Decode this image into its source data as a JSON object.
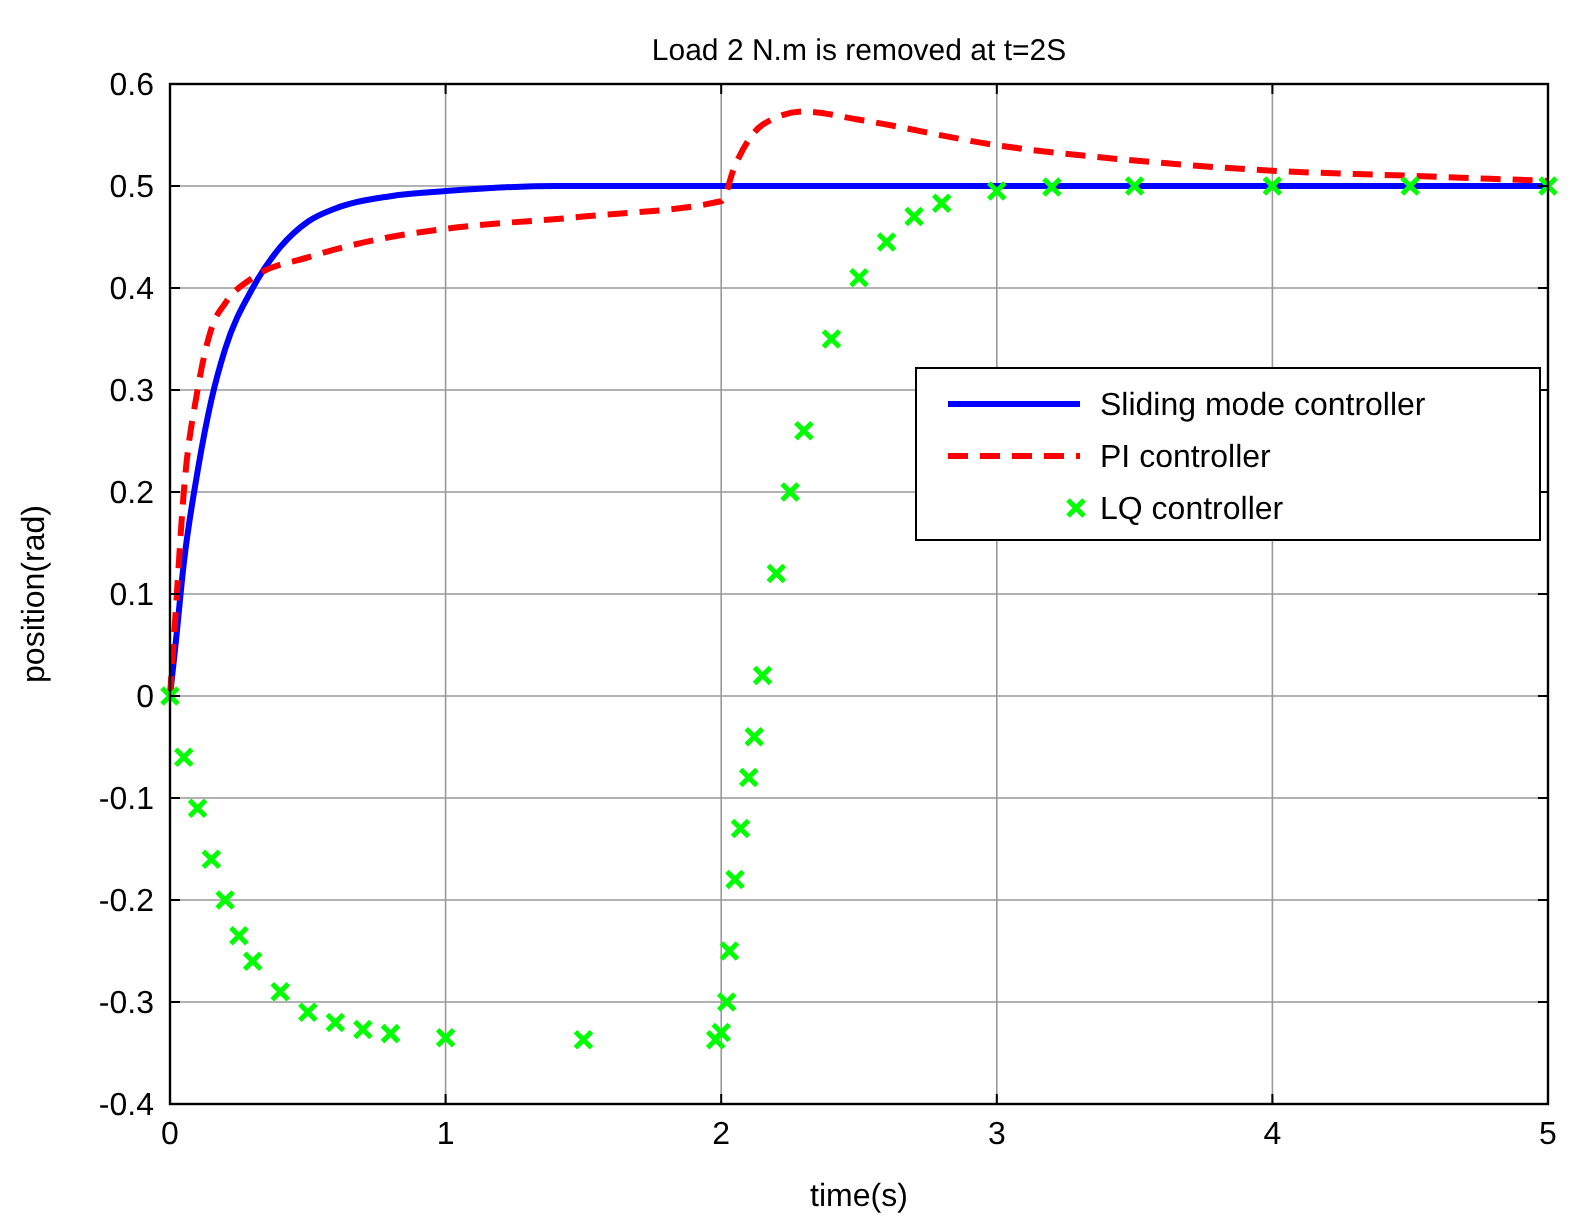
{
  "chart_data": {
    "type": "line",
    "title": "Load 2 N.m is removed at t=2S",
    "xlabel": "time(s)",
    "ylabel": "position(rad)",
    "xlim": [
      0,
      5
    ],
    "xticks": [
      0,
      1,
      2,
      3,
      4,
      5
    ],
    "ylim": [
      -0.4,
      0.6
    ],
    "yticks": [
      -0.4,
      -0.3,
      -0.2,
      -0.1,
      0,
      0.1,
      0.2,
      0.3,
      0.4,
      0.5,
      0.6
    ],
    "grid": true,
    "legend": "right",
    "series": [
      {
        "name": "Sliding mode controller",
        "color": "#0000ff",
        "line_style": "solid",
        "marker": "none",
        "x": [
          0,
          0.02,
          0.05,
          0.1,
          0.15,
          0.2,
          0.3,
          0.4,
          0.5,
          0.6,
          0.8,
          1.0,
          1.4,
          5
        ],
        "values": [
          0,
          0.05,
          0.13,
          0.22,
          0.29,
          0.34,
          0.4,
          0.44,
          0.465,
          0.478,
          0.49,
          0.495,
          0.5,
          0.5
        ]
      },
      {
        "name": "PI controller",
        "color": "#ff0000",
        "line_style": "dashed",
        "marker": "none",
        "x": [
          0,
          0.02,
          0.05,
          0.1,
          0.15,
          0.2,
          0.3,
          0.5,
          0.8,
          1.0,
          1.5,
          2.0,
          2.05,
          2.15,
          2.3,
          2.5,
          3.0,
          3.5,
          4.0,
          4.5,
          5
        ],
        "values": [
          0,
          0.08,
          0.2,
          0.3,
          0.36,
          0.385,
          0.41,
          0.43,
          0.45,
          0.458,
          0.47,
          0.485,
          0.52,
          0.56,
          0.573,
          0.565,
          0.54,
          0.525,
          0.515,
          0.51,
          0.505
        ]
      },
      {
        "name": "LQ controller",
        "type": "scatter",
        "color": "#00ff00",
        "marker": "cross",
        "x": [
          0,
          0.05,
          0.1,
          0.15,
          0.2,
          0.25,
          0.3,
          0.4,
          0.5,
          0.6,
          0.7,
          0.8,
          1.0,
          1.5,
          1.98,
          2.0,
          2.02,
          2.03,
          2.05,
          2.07,
          2.1,
          2.12,
          2.15,
          2.2,
          2.25,
          2.3,
          2.4,
          2.5,
          2.6,
          2.7,
          2.8,
          3.0,
          3.2,
          3.5,
          4.0,
          4.5,
          5
        ],
        "values": [
          0,
          -0.06,
          -0.11,
          -0.16,
          -0.2,
          -0.235,
          -0.26,
          -0.29,
          -0.31,
          -0.32,
          -0.327,
          -0.331,
          -0.335,
          -0.337,
          -0.337,
          -0.33,
          -0.3,
          -0.25,
          -0.18,
          -0.13,
          -0.08,
          -0.04,
          0.02,
          0.12,
          0.2,
          0.26,
          0.35,
          0.41,
          0.445,
          0.47,
          0.483,
          0.495,
          0.499,
          0.5,
          0.5,
          0.5,
          0.5
        ]
      }
    ]
  }
}
